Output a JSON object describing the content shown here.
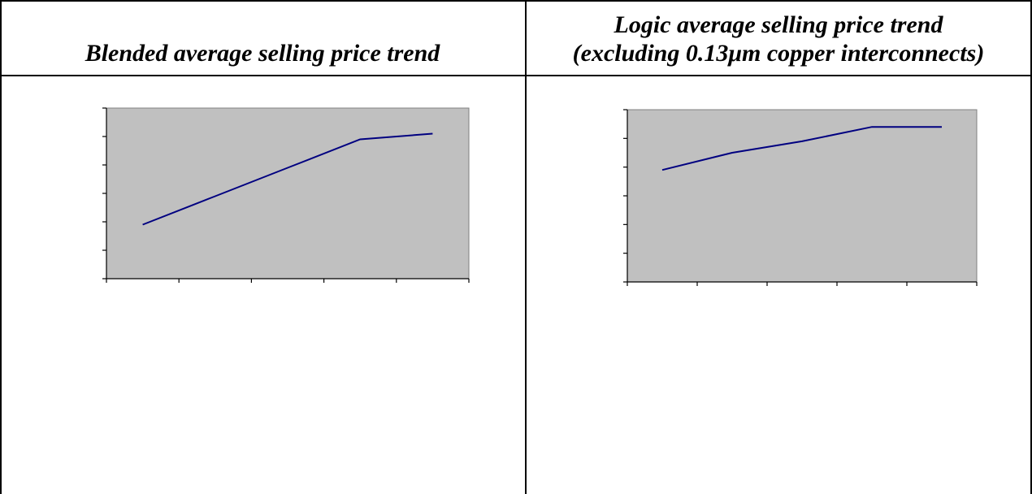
{
  "left_cell": {
    "title": "Blended average selling price trend"
  },
  "right_cell": {
    "title_line1": "Logic average selling price trend",
    "title_line2": "(excluding 0.13μm copper interconnects)"
  },
  "colors": {
    "line": "#000080",
    "plot_bg": "#c0c0c0",
    "border": "#000000"
  },
  "chart_data": [
    {
      "type": "line",
      "title": "",
      "xlabel": "",
      "ylabel": "",
      "categories": [
        "",
        "",
        "",
        "",
        ""
      ],
      "series": [
        {
          "values": [
            1.9,
            2.9,
            3.9,
            4.9,
            5.1
          ]
        }
      ],
      "ylim": [
        0,
        6
      ],
      "y_ticks": 7,
      "x_ticks": 6,
      "grid": false
    },
    {
      "type": "line",
      "title": "",
      "xlabel": "",
      "ylabel": "",
      "categories": [
        "",
        "",
        "",
        "",
        ""
      ],
      "series": [
        {
          "values": [
            3.9,
            4.5,
            4.9,
            5.4,
            5.4
          ]
        }
      ],
      "ylim": [
        0,
        6
      ],
      "y_ticks": 7,
      "x_ticks": 6,
      "grid": false
    }
  ]
}
